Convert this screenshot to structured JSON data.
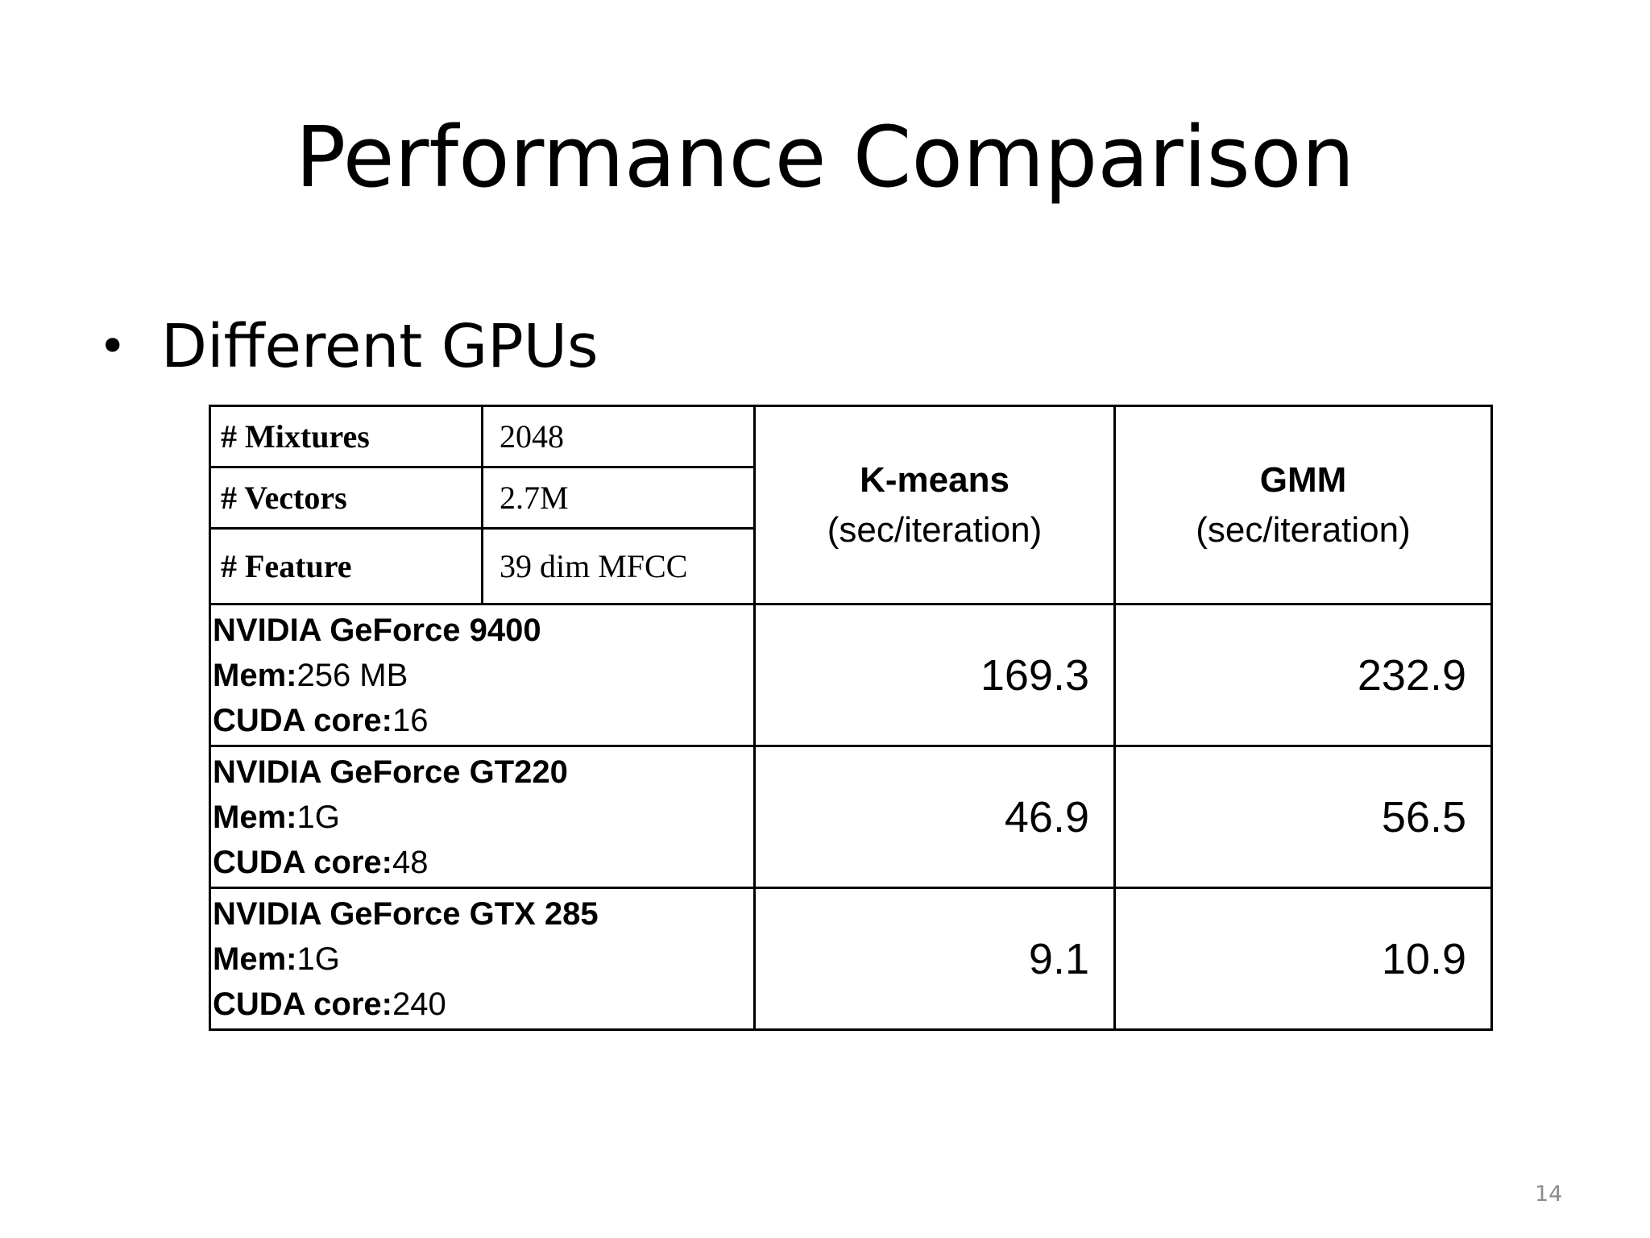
{
  "slide": {
    "title": "Performance Comparison",
    "bullet": "Different GPUs",
    "page_number": "14"
  },
  "table": {
    "meta": [
      {
        "label": "# Mixtures",
        "value": "2048"
      },
      {
        "label": "# Vectors",
        "value": "2.7M"
      },
      {
        "label": "# Feature",
        "value": "39 dim MFCC"
      }
    ],
    "columns": [
      {
        "title": "K-means",
        "unit": "(sec/iteration)"
      },
      {
        "title": "GMM",
        "unit": "(sec/iteration)"
      }
    ],
    "rows": [
      {
        "gpu": "NVIDIA GeForce 9400",
        "mem_label": "Mem:",
        "mem": "256 MB",
        "cores_label": "CUDA core:",
        "cores": "16",
        "kmeans": "169.3",
        "gmm": "232.9"
      },
      {
        "gpu": "NVIDIA GeForce GT220",
        "mem_label": "Mem:",
        "mem": "1G",
        "cores_label": "CUDA core:",
        "cores": "48",
        "kmeans": "46.9",
        "gmm": "56.5"
      },
      {
        "gpu": "NVIDIA GeForce GTX 285",
        "mem_label": "Mem:",
        "mem": "1G",
        "cores_label": "CUDA core:",
        "cores": "240",
        "kmeans": "9.1",
        "gmm": "10.9"
      }
    ]
  }
}
